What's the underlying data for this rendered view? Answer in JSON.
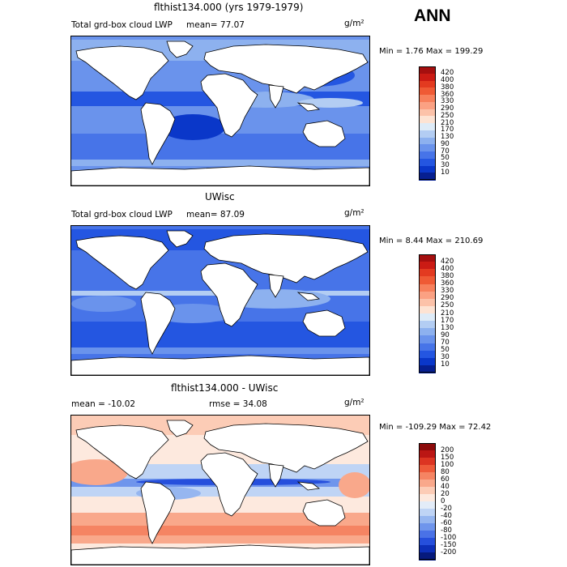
{
  "figure": {
    "season": "ANN",
    "units": "g/m²"
  },
  "panels": [
    {
      "title": "flthist134.000 (yrs 1979-1979)",
      "left_text": "Total grd-box cloud LWP",
      "right_text": "mean=   77.07",
      "units": "g/m²",
      "minmax": "Min =   1.76 Max = 199.29",
      "colorbar": {
        "labels": [
          "420",
          "400",
          "380",
          "360",
          "330",
          "290",
          "250",
          "210",
          "170",
          "130",
          "90",
          "70",
          "50",
          "30",
          "10"
        ],
        "colors": [
          "#a50f0f",
          "#cb1b14",
          "#e33a20",
          "#ef5a35",
          "#f7805c",
          "#fba183",
          "#fcc2a9",
          "#fde3d3",
          "#deebf7",
          "#b3cdf3",
          "#8db1ef",
          "#6a93ec",
          "#4774e8",
          "#2456e1",
          "#0a37c9",
          "#061f90"
        ]
      }
    },
    {
      "title": "UWisc",
      "left_text": "Total grd-box cloud LWP",
      "right_text": "mean=   87.09",
      "units": "g/m²",
      "minmax": "Min =   8.44 Max = 210.69",
      "colorbar": {
        "labels": [
          "420",
          "400",
          "380",
          "360",
          "330",
          "290",
          "250",
          "210",
          "170",
          "130",
          "90",
          "70",
          "50",
          "30",
          "10"
        ],
        "colors": [
          "#a50f0f",
          "#cb1b14",
          "#e33a20",
          "#ef5a35",
          "#f7805c",
          "#fba183",
          "#fcc2a9",
          "#fde3d3",
          "#deebf7",
          "#b3cdf3",
          "#8db1ef",
          "#6a93ec",
          "#4774e8",
          "#2456e1",
          "#0a37c9",
          "#061f90"
        ]
      }
    },
    {
      "title": "flthist134.000 - UWisc",
      "left_text": "mean = -10.02",
      "right_text": "rmse =  34.08",
      "units": "g/m²",
      "minmax": "Min = -109.29 Max =  72.42",
      "colorbar": {
        "labels": [
          "200",
          "150",
          "100",
          "80",
          "60",
          "40",
          "20",
          "0",
          "-20",
          "-40",
          "-60",
          "-80",
          "-100",
          "-150",
          "-200"
        ],
        "colors": [
          "#8c0a0a",
          "#bb1614",
          "#dc3422",
          "#ee5a3a",
          "#f58463",
          "#f9a88b",
          "#fcccb6",
          "#fde9de",
          "#e3ecf8",
          "#bfd4f5",
          "#96b6f0",
          "#6f95ec",
          "#4a72e7",
          "#264fdc",
          "#0d2fb8",
          "#061a7c"
        ]
      }
    }
  ]
}
